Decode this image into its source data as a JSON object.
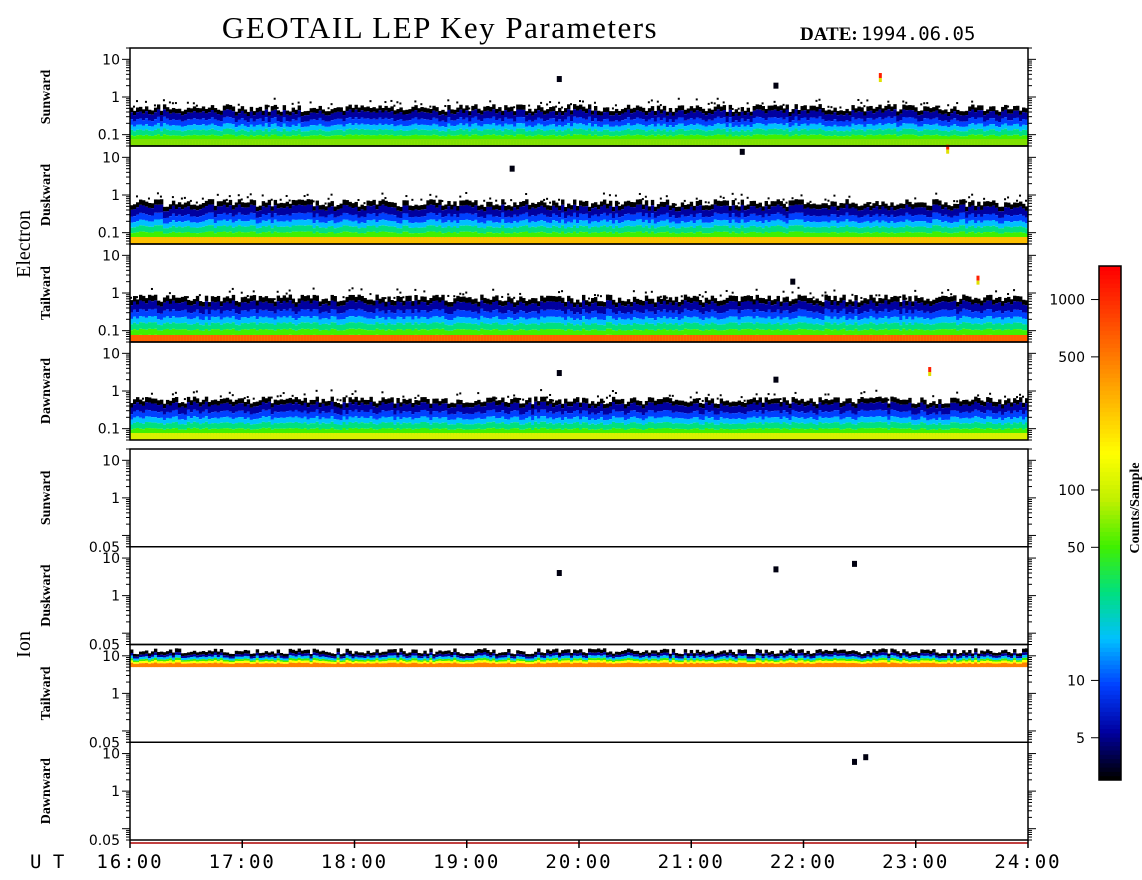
{
  "title": "GEOTAIL LEP Key Parameters",
  "date_label": "DATE:",
  "date_value": "1994.06.05",
  "chart_data": {
    "type": "heatmap",
    "x_axis": {
      "label": "U T",
      "range": [
        "16:00",
        "24:00"
      ],
      "ticks": [
        "16:00",
        "17:00",
        "18:00",
        "19:00",
        "20:00",
        "21:00",
        "22:00",
        "23:00",
        "24:00"
      ]
    },
    "groups": [
      {
        "name": "Electron",
        "panels": [
          {
            "name": "Sunward",
            "yscale": "log",
            "ylim": [
              0.05,
              20
            ],
            "yticks": [
              "10",
              "1",
              "0.1"
            ],
            "bottom_color": "#7fe000",
            "cutoff": 0.5,
            "spikes": [
              {
                "t": 19.82,
                "v": 3
              },
              {
                "t": 22.68,
                "v": 3,
                "hot": true
              },
              {
                "t": 21.75,
                "v": 2
              }
            ]
          },
          {
            "name": "Duskward",
            "yscale": "log",
            "ylim": [
              0.05,
              20
            ],
            "yticks": [
              "10",
              "1",
              "0.1"
            ],
            "bottom_color": "#ffc000",
            "cutoff": 0.6,
            "spikes": [
              {
                "t": 23.28,
                "v": 15,
                "hot": true
              },
              {
                "t": 21.45,
                "v": 14
              },
              {
                "t": 19.4,
                "v": 5
              }
            ]
          },
          {
            "name": "Tailward",
            "yscale": "log",
            "ylim": [
              0.05,
              20
            ],
            "yticks": [
              "10",
              "1",
              "0.1"
            ],
            "bottom_color": "#ff6000",
            "cutoff": 0.7,
            "spikes": [
              {
                "t": 23.55,
                "v": 2,
                "hot": true
              },
              {
                "t": 21.9,
                "v": 2
              }
            ]
          },
          {
            "name": "Dawnward",
            "yscale": "log",
            "ylim": [
              0.05,
              20
            ],
            "yticks": [
              "10",
              "1",
              "0.1"
            ],
            "bottom_color": "#d8f000",
            "cutoff": 0.55,
            "spikes": [
              {
                "t": 23.12,
                "v": 3,
                "hot": true
              },
              {
                "t": 19.82,
                "v": 3
              },
              {
                "t": 21.75,
                "v": 2
              }
            ]
          }
        ]
      },
      {
        "name": "Ion",
        "panels": [
          {
            "name": "Sunward",
            "yscale": "log",
            "ylim": [
              0.05,
              20
            ],
            "yticks": [
              "10",
              "1",
              "0.05"
            ],
            "spikes": []
          },
          {
            "name": "Duskward",
            "yscale": "log",
            "ylim": [
              0.05,
              20
            ],
            "yticks": [
              "10",
              "1",
              "0.05"
            ],
            "spikes": [
              {
                "t": 22.45,
                "v": 7
              },
              {
                "t": 21.75,
                "v": 5
              },
              {
                "t": 19.82,
                "v": 4
              }
            ]
          },
          {
            "name": "Tailward",
            "yscale": "log",
            "ylim": [
              0.05,
              20
            ],
            "yticks": [
              "10",
              "1",
              "0.05"
            ],
            "band": [
              5,
              11
            ],
            "spikes": []
          },
          {
            "name": "Dawnward",
            "yscale": "log",
            "ylim": [
              0.05,
              20
            ],
            "yticks": [
              "10",
              "1",
              "0.05"
            ],
            "spikes": [
              {
                "t": 22.45,
                "v": 6
              },
              {
                "t": 22.55,
                "v": 8
              }
            ]
          }
        ]
      }
    ],
    "colorbar": {
      "label": "Counts/Sample",
      "scale": "log",
      "range": [
        3,
        1500
      ],
      "ticks": [
        "1000",
        "500",
        "100",
        "50",
        "10",
        "5"
      ],
      "colors": [
        "#000000",
        "#0000a0",
        "#0040ff",
        "#00c0ff",
        "#00e080",
        "#40f000",
        "#c0f000",
        "#ffff00",
        "#ffc000",
        "#ff8000",
        "#ff4000",
        "#ff0000"
      ]
    }
  }
}
